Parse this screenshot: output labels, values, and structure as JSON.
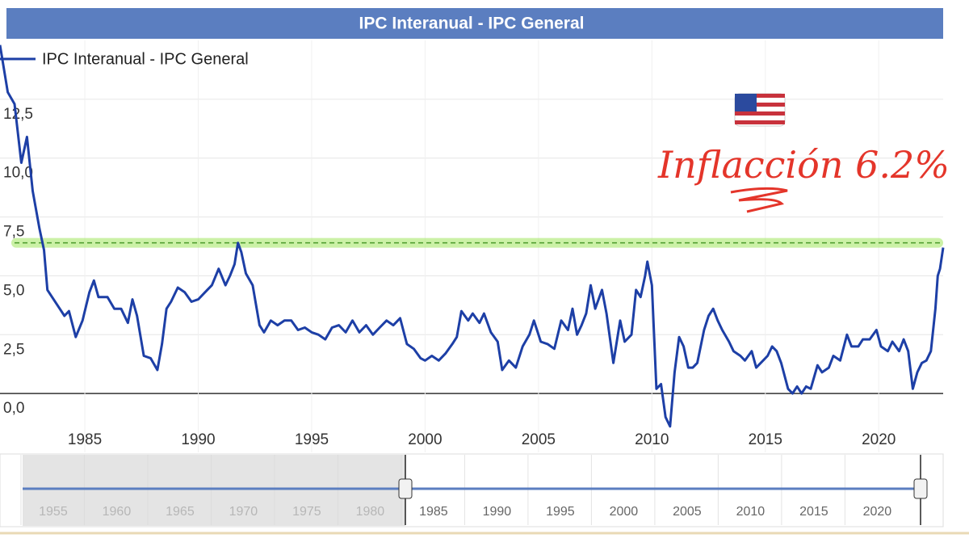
{
  "chart_data": {
    "type": "line",
    "title": "IPC Interanual - IPC General",
    "annotation": "Inflacción 6.2%",
    "reference_line": 6.4,
    "reference_color": "#a8e86a",
    "xlim": [
      1981.26,
      2022.84
    ],
    "xticks": [
      1985,
      1990,
      1995,
      2000,
      2005,
      2010,
      2015,
      2020
    ],
    "ylim": [
      -2.5,
      15
    ],
    "yticks": [
      {
        "value": 0,
        "label": "0,0"
      },
      {
        "value": 2.5,
        "label": "2,5"
      },
      {
        "value": 5,
        "label": "5,0"
      },
      {
        "value": 7.5,
        "label": "7,5"
      },
      {
        "value": 10,
        "label": "10,0"
      },
      {
        "value": 12.5,
        "label": "12,5"
      }
    ],
    "grid": true,
    "x": [
      1981.26,
      1981.6,
      1981.9,
      1982.2,
      1982.45,
      1982.7,
      1983.0,
      1983.2,
      1983.35,
      1984.1,
      1984.3,
      1984.6,
      1984.9,
      1985.2,
      1985.4,
      1985.6,
      1986.0,
      1986.3,
      1986.6,
      1986.9,
      1987.1,
      1987.3,
      1987.6,
      1987.9,
      1988.2,
      1988.4,
      1988.6,
      1988.8,
      1989.1,
      1989.4,
      1989.7,
      1990.0,
      1990.3,
      1990.6,
      1990.9,
      1991.2,
      1991.4,
      1991.6,
      1991.75,
      1991.9,
      1992.1,
      1992.4,
      1992.7,
      1992.9,
      1993.2,
      1993.5,
      1993.8,
      1994.1,
      1994.4,
      1994.7,
      1995.0,
      1995.3,
      1995.6,
      1995.9,
      1996.2,
      1996.5,
      1996.8,
      1997.1,
      1997.4,
      1997.7,
      1998.0,
      1998.3,
      1998.6,
      1998.9,
      1999.2,
      1999.5,
      1999.8,
      2000.0,
      2000.3,
      2000.6,
      2000.9,
      2001.2,
      2001.4,
      2001.6,
      2001.9,
      2002.1,
      2002.4,
      2002.6,
      2002.9,
      2003.2,
      2003.4,
      2003.7,
      2004.0,
      2004.3,
      2004.6,
      2004.8,
      2005.1,
      2005.4,
      2005.7,
      2006.0,
      2006.3,
      2006.5,
      2006.7,
      2006.9,
      2007.1,
      2007.3,
      2007.5,
      2007.8,
      2008.0,
      2008.3,
      2008.6,
      2008.8,
      2009.1,
      2009.3,
      2009.5,
      2009.7,
      2009.8,
      2010.0,
      2010.2,
      2010.4,
      2010.6,
      2010.8,
      2011.0,
      2011.2,
      2011.4,
      2011.6,
      2011.8,
      2012.0,
      2012.3,
      2012.5,
      2012.7,
      2012.9,
      2013.1,
      2013.4,
      2013.6,
      2013.9,
      2014.1,
      2014.4,
      2014.6,
      2014.9,
      2015.1,
      2015.3,
      2015.5,
      2015.7,
      2016.0,
      2016.2,
      2016.4,
      2016.6,
      2016.8,
      2017.0,
      2017.3,
      2017.5,
      2017.8,
      2018.0,
      2018.3,
      2018.6,
      2018.8,
      2019.1,
      2019.3,
      2019.6,
      2019.9,
      2020.1,
      2020.4,
      2020.6,
      2020.9,
      2021.1,
      2021.3,
      2021.5,
      2021.7,
      2021.9,
      2022.1,
      2022.3,
      2022.5,
      2022.6,
      2022.7,
      2022.84
    ],
    "series": [
      {
        "name": "IPC Interanual - IPC General",
        "color": "#1d3fa6",
        "values": [
          14.8,
          12.8,
          12.3,
          9.8,
          10.9,
          8.6,
          7.0,
          6.1,
          4.4,
          3.3,
          3.5,
          2.4,
          3.1,
          4.3,
          4.8,
          4.1,
          4.1,
          3.6,
          3.6,
          3.0,
          4.0,
          3.3,
          1.6,
          1.5,
          1.0,
          2.1,
          3.6,
          3.9,
          4.5,
          4.3,
          3.9,
          4.0,
          4.3,
          4.6,
          5.3,
          4.6,
          5.0,
          5.5,
          6.4,
          6.0,
          5.1,
          4.6,
          2.9,
          2.6,
          3.1,
          2.9,
          3.1,
          3.1,
          2.7,
          2.8,
          2.6,
          2.5,
          2.3,
          2.8,
          2.9,
          2.6,
          3.1,
          2.6,
          2.9,
          2.5,
          2.8,
          3.1,
          2.9,
          3.2,
          2.1,
          1.9,
          1.5,
          1.4,
          1.6,
          1.4,
          1.7,
          2.1,
          2.4,
          3.5,
          3.1,
          3.4,
          3.0,
          3.4,
          2.6,
          2.2,
          1.0,
          1.4,
          1.1,
          2.0,
          2.5,
          3.1,
          2.2,
          2.1,
          1.9,
          3.1,
          2.7,
          3.6,
          2.5,
          2.9,
          3.4,
          4.6,
          3.6,
          4.4,
          3.4,
          1.3,
          3.1,
          2.2,
          2.5,
          4.4,
          4.1,
          5.0,
          5.6,
          4.6,
          0.2,
          0.4,
          -1.0,
          -1.4,
          0.9,
          2.4,
          2.0,
          1.1,
          1.1,
          1.3,
          2.7,
          3.3,
          3.6,
          3.1,
          2.7,
          2.2,
          1.8,
          1.6,
          1.4,
          1.8,
          1.1,
          1.4,
          1.6,
          2.0,
          1.8,
          1.3,
          0.2,
          0.0,
          0.3,
          0.0,
          0.3,
          0.2,
          1.2,
          0.9,
          1.1,
          1.6,
          1.4,
          2.5,
          2.0,
          2.0,
          2.3,
          2.3,
          2.7,
          2.0,
          1.8,
          2.2,
          1.8,
          2.3,
          1.8,
          0.2,
          0.9,
          1.3,
          1.4,
          1.8,
          3.6,
          5.0,
          5.3,
          6.2
        ]
      }
    ],
    "navigator": {
      "xlim": [
        1950.8,
        2025.2
      ],
      "xticks": [
        1955,
        1960,
        1965,
        1970,
        1975,
        1980,
        1985,
        1990,
        1995,
        2000,
        2005,
        2010,
        2015,
        2020
      ]
    }
  }
}
